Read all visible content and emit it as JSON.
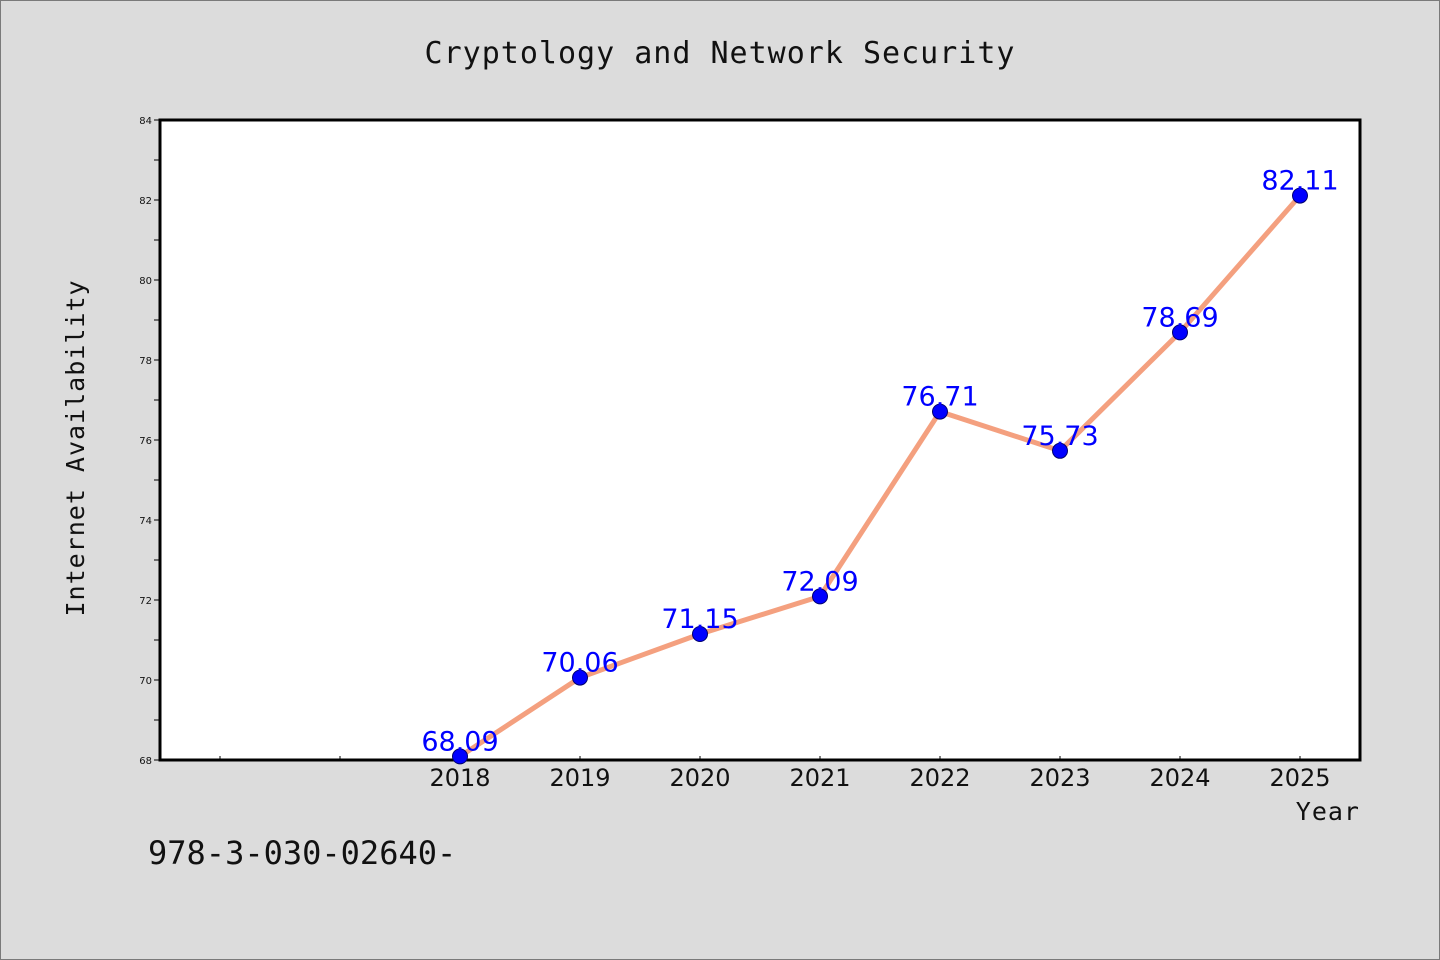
{
  "chart_data": {
    "type": "line",
    "title": "Cryptology and Network Security",
    "xlabel": "Year",
    "ylabel": "Internet Availability",
    "categories": [
      "2018",
      "2019",
      "2020",
      "2021",
      "2022",
      "2023",
      "2024",
      "2025"
    ],
    "series": [
      {
        "values": [
          68.09,
          70.06,
          71.15,
          72.09,
          76.71,
          75.73,
          78.69,
          82.11
        ],
        "data_labels": [
          "68.09",
          "70.06",
          "71.15",
          "72.09",
          "76.71",
          "75.73",
          "78.69",
          "82.11"
        ],
        "line_color": "#f4a07f",
        "marker_color": "#0000ff"
      }
    ],
    "ylim": [
      68,
      84
    ],
    "yticks": [
      68,
      70,
      72,
      74,
      76,
      78,
      80,
      82,
      84
    ],
    "ytick_labels": [
      "68",
      "70",
      "72",
      "74",
      "76",
      "78",
      "80",
      "82",
      "84"
    ],
    "grid": false,
    "legend": "none"
  },
  "footnote": "978-3-030-02640-",
  "colors": {
    "background": "#dcdcdc",
    "plot_background": "#ffffff",
    "line": "#f4a07f",
    "marker": "#0000ff",
    "label": "#0000ff"
  }
}
